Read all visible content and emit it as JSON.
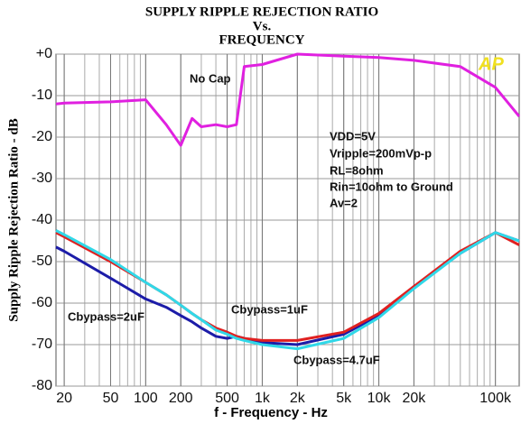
{
  "chart_data": {
    "type": "line",
    "title": [
      "SUPPLY RIPPLE REJECTION RATIO",
      "Vs.",
      "FREQUENCY"
    ],
    "x_label": "f - Frequency - Hz",
    "y_label": "Supply Ripple Rejection Ratio - dB",
    "x_log": true,
    "grid": true,
    "xlim": [
      17,
      160000
    ],
    "ylim": [
      -80,
      0
    ],
    "xticks": [
      20,
      50,
      100,
      200,
      500,
      {
        "value": 1000,
        "label": "1k"
      },
      {
        "value": 2000,
        "label": "2k"
      },
      {
        "value": 5000,
        "label": "5k"
      },
      {
        "value": 10000,
        "label": "10k"
      },
      {
        "value": 20000,
        "label": "20k"
      },
      {
        "value": 100000,
        "label": "100k"
      }
    ],
    "yticks": [
      {
        "value": 0,
        "label": "+0"
      },
      -10,
      -20,
      -30,
      -40,
      -50,
      -60,
      -70,
      -80
    ],
    "x": [
      17,
      20,
      50,
      100,
      150,
      200,
      250,
      300,
      400,
      500,
      600,
      700,
      1000,
      2000,
      5000,
      10000,
      20000,
      50000,
      100000,
      160000
    ],
    "series": [
      {
        "name": "No Cap",
        "color": "#e020e0",
        "values": [
          -12,
          -11.8,
          -11.5,
          -11,
          -17,
          -22,
          -15.5,
          -17.5,
          -17,
          -17.5,
          -17,
          -3,
          -2.5,
          0,
          -0.5,
          -0.8,
          -1.5,
          -3,
          -8,
          -15
        ]
      },
      {
        "name": "Cbypass=2uF",
        "color": "#1c1ca8",
        "values": [
          -46.5,
          -47.5,
          -54,
          -59,
          -61,
          -63,
          -64.5,
          -66,
          -68,
          -68.5,
          -68,
          -68.5,
          -69.5,
          -70,
          -67.5,
          -63,
          -56,
          -48,
          -43,
          -45
        ]
      },
      {
        "name": "Cbypass=1uF",
        "color": "#e02020",
        "values": [
          -43,
          -44,
          -50,
          -55,
          -58,
          -60.5,
          -62.5,
          -64,
          -66,
          -67,
          -68,
          -68.5,
          -69,
          -69,
          -67,
          -62.5,
          -56,
          -47.5,
          -43,
          -46
        ]
      },
      {
        "name": "Cbypass=4.7uF",
        "color": "#30d8e8",
        "values": [
          -42.5,
          -43.5,
          -49.5,
          -55,
          -58,
          -60.5,
          -62.5,
          -64,
          -66.5,
          -67.5,
          -68.5,
          -69,
          -70,
          -71,
          -68.5,
          -63.5,
          -56.5,
          -48,
          -43,
          -45
        ]
      }
    ],
    "annotations": [
      "VDD=5V",
      "Vripple=200mVp-p",
      "RL=8ohm",
      "Rin=10ohm to Ground",
      "Av=2",
      "AP"
    ]
  }
}
